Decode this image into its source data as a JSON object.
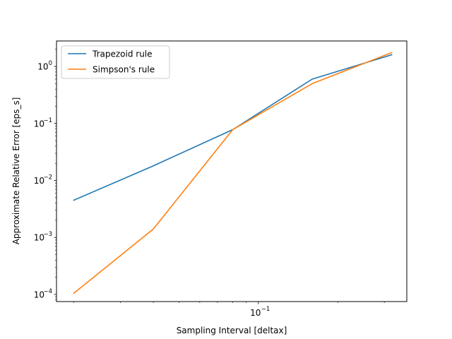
{
  "chart_data": {
    "type": "line",
    "title": "",
    "xlabel": "Sampling Interval [deltax]",
    "ylabel": "Approximate Relative Error [eps_s]",
    "xscale": "log",
    "yscale": "log",
    "xlim": [
      0.0172,
      0.365
    ],
    "ylim": [
      7.5e-05,
      2.8
    ],
    "x_major_ticks": [
      {
        "value": 0.1,
        "label": "10",
        "exp": "−1"
      }
    ],
    "x_minor_ticks": [
      0.02,
      0.03,
      0.04,
      0.05,
      0.06,
      0.07,
      0.08,
      0.09,
      0.2,
      0.3
    ],
    "y_major_ticks": [
      {
        "value": 0.0001,
        "label": "10",
        "exp": "−4"
      },
      {
        "value": 0.001,
        "label": "10",
        "exp": "−3"
      },
      {
        "value": 0.01,
        "label": "10",
        "exp": "−2"
      },
      {
        "value": 0.1,
        "label": "10",
        "exp": "−1"
      },
      {
        "value": 1,
        "label": "10",
        "exp": "0"
      }
    ],
    "grid": false,
    "legend_position": "top-left",
    "series": [
      {
        "name": "Trapezoid rule",
        "color": "#1f77b4",
        "x": [
          0.02,
          0.04,
          0.08,
          0.16,
          0.32
        ],
        "y": [
          0.0045,
          0.018,
          0.078,
          0.6,
          1.6
        ]
      },
      {
        "name": "Simpson's rule",
        "color": "#ff7f0e",
        "x": [
          0.02,
          0.04,
          0.08,
          0.16,
          0.32
        ],
        "y": [
          0.000105,
          0.0014,
          0.078,
          0.5,
          1.75
        ]
      }
    ]
  }
}
